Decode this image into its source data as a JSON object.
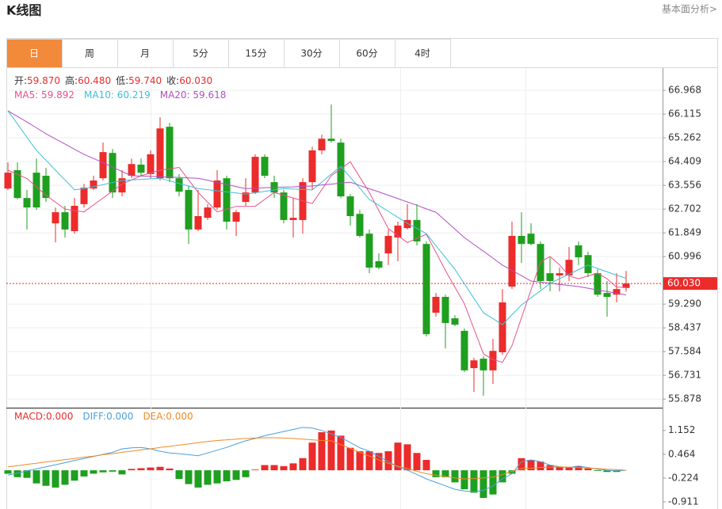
{
  "header": {
    "title": "K线图",
    "link": "基本面分析>"
  },
  "tabs": [
    "日",
    "周",
    "月",
    "5分",
    "15分",
    "30分",
    "60分",
    "4时"
  ],
  "active_tab": 0,
  "ohlc_info": [
    {
      "label": "开:",
      "value": "59.870"
    },
    {
      "label": "高:",
      "value": "60.480"
    },
    {
      "label": "低:",
      "value": "59.740"
    },
    {
      "label": "收:",
      "value": "60.030"
    }
  ],
  "chart_data": [
    {
      "type": "candlestick",
      "categories": [
        null,
        null,
        null,
        null,
        null,
        null,
        null,
        null,
        null,
        null,
        null,
        null,
        null,
        null,
        null,
        null,
        null,
        null,
        null,
        null,
        null,
        null,
        null,
        null,
        null,
        null,
        null,
        null,
        null,
        null,
        null,
        null,
        null,
        null,
        null,
        null,
        null,
        null,
        null,
        null,
        null,
        null,
        null,
        null,
        null,
        null,
        null,
        null,
        null,
        null,
        null,
        null,
        null,
        null,
        null,
        null,
        null,
        null,
        null,
        null,
        null,
        null,
        null,
        null,
        null,
        null
      ],
      "open": [
        63.44,
        64.1,
        63.1,
        64.01,
        63.9,
        62.19,
        62.59,
        61.91,
        62.88,
        63.44,
        63.81,
        64.72,
        63.3,
        63.9,
        64.3,
        63.96,
        63.81,
        65.66,
        63.81,
        63.39,
        61.97,
        62.39,
        62.76,
        63.81,
        62.25,
        62.96,
        63.3,
        64.58,
        63.67,
        63.3,
        62.31,
        62.31,
        63.67,
        64.81,
        65.23,
        65.09,
        63.16,
        62.53,
        61.82,
        60.83,
        61.11,
        61.68,
        62.02,
        62.31,
        61.45,
        58.98,
        59.55,
        58.78,
        58.33,
        56.99,
        57.33,
        56.91,
        57.56,
        59.92,
        61.74,
        61.82,
        61.45,
        60.4,
        60.32,
        60.32,
        61.4,
        61.05,
        60.4,
        59.69,
        59.63,
        59.87
      ],
      "high": [
        64.38,
        64.38,
        63.39,
        64.52,
        64.18,
        62.76,
        62.82,
        63.1,
        63.61,
        63.9,
        65.09,
        64.86,
        64.1,
        64.52,
        64.52,
        64.81,
        66.0,
        65.8,
        63.96,
        63.53,
        63.39,
        62.88,
        64.1,
        63.9,
        62.67,
        63.81,
        64.67,
        64.67,
        63.9,
        63.39,
        63.1,
        63.81,
        64.95,
        65.38,
        66.46,
        65.23,
        63.24,
        62.67,
        61.97,
        61.11,
        61.97,
        62.25,
        62.88,
        62.88,
        61.54,
        59.69,
        59.63,
        58.89,
        58.41,
        57.36,
        57.42,
        58.04,
        59.83,
        62.25,
        62.59,
        62.19,
        61.54,
        60.97,
        60.6,
        61.34,
        61.54,
        61.17,
        60.54,
        60.12,
        60.4,
        60.48
      ],
      "low": [
        63.39,
        63.05,
        61.97,
        62.67,
        62.96,
        61.51,
        61.68,
        61.82,
        62.76,
        63.39,
        63.73,
        63.1,
        63.16,
        63.81,
        63.9,
        63.81,
        63.73,
        63.67,
        63.16,
        61.45,
        61.91,
        62.31,
        62.67,
        61.97,
        61.74,
        62.82,
        63.24,
        63.81,
        63.1,
        62.19,
        61.68,
        61.82,
        63.39,
        64.67,
        65.09,
        63.1,
        62.11,
        61.68,
        60.4,
        60.54,
        60.69,
        60.83,
        61.97,
        61.4,
        58.13,
        58.84,
        57.7,
        58.5,
        56.85,
        56.14,
        56.0,
        56.42,
        57.47,
        59.83,
        60.77,
        61.4,
        59.83,
        59.75,
        59.75,
        60.12,
        60.69,
        60.26,
        59.55,
        58.84,
        59.35,
        59.74
      ],
      "close": [
        64.01,
        63.1,
        62.76,
        62.76,
        63.1,
        62.59,
        61.97,
        62.82,
        63.47,
        63.73,
        64.75,
        63.3,
        63.81,
        64.32,
        64.01,
        64.67,
        65.6,
        63.81,
        63.33,
        61.97,
        62.45,
        62.76,
        63.73,
        62.25,
        62.59,
        63.3,
        64.58,
        63.9,
        63.3,
        62.31,
        62.39,
        63.67,
        64.81,
        65.23,
        65.15,
        63.16,
        62.45,
        61.74,
        60.6,
        60.6,
        61.74,
        62.11,
        62.31,
        61.54,
        58.21,
        59.55,
        58.61,
        58.55,
        56.91,
        57.27,
        56.91,
        57.61,
        59.35,
        61.74,
        61.45,
        61.45,
        60.12,
        60.12,
        60.4,
        60.88,
        60.97,
        60.4,
        59.63,
        59.55,
        59.83,
        60.03
      ],
      "up_color": "#ec2b2b",
      "down_color": "#1f9f1f",
      "series": [
        {
          "name": "MA5: 59.892",
          "color": "#e9508a",
          "values": [
            64.1,
            63.95,
            63.8,
            63.5,
            63.2,
            62.95,
            62.7,
            62.65,
            62.6,
            62.85,
            63.1,
            63.35,
            63.6,
            63.75,
            63.9,
            64.0,
            64.1,
            64.15,
            64.2,
            63.75,
            63.3,
            62.95,
            62.6,
            62.7,
            62.8,
            62.8,
            62.8,
            63.05,
            63.3,
            63.2,
            63.1,
            63.0,
            62.9,
            63.4,
            63.9,
            64.15,
            64.4,
            63.85,
            63.3,
            62.65,
            62.0,
            61.75,
            61.5,
            61.65,
            61.8,
            61.15,
            60.5,
            59.9,
            59.3,
            58.4,
            57.5,
            57.3,
            57.2,
            57.8,
            58.8,
            59.8,
            60.8,
            61.0,
            60.7,
            60.3,
            60.2,
            60.3,
            60.4,
            60.2,
            59.9,
            59.892
          ]
        },
        {
          "name": "MA10: 60.219",
          "color": "#3dbfd9",
          "values": [
            66.23,
            65.76,
            65.28,
            64.81,
            64.46,
            64.1,
            63.75,
            63.39,
            63.44,
            63.51,
            63.58,
            63.66,
            63.73,
            63.75,
            63.77,
            63.79,
            63.81,
            63.72,
            63.62,
            63.53,
            63.44,
            63.4,
            63.36,
            63.32,
            63.28,
            63.24,
            63.29,
            63.34,
            63.39,
            63.44,
            63.42,
            63.41,
            63.39,
            63.67,
            63.96,
            64.24,
            63.84,
            63.45,
            63.05,
            62.84,
            62.62,
            62.41,
            62.19,
            62.01,
            61.82,
            61.39,
            60.97,
            60.54,
            60.02,
            59.5,
            58.98,
            58.77,
            58.55,
            58.91,
            59.26,
            59.52,
            59.77,
            60.03,
            60.2,
            60.36,
            60.53,
            60.69,
            60.57,
            60.45,
            60.33,
            60.219
          ]
        },
        {
          "name": "MA20: 59.618",
          "color": "#b04fc4",
          "values": [
            66.23,
            66.03,
            65.83,
            65.62,
            65.41,
            65.22,
            65.04,
            64.85,
            64.67,
            64.52,
            64.37,
            64.21,
            64.05,
            63.9,
            63.89,
            63.88,
            63.86,
            63.85,
            63.84,
            63.82,
            63.81,
            63.74,
            63.66,
            63.59,
            63.51,
            63.44,
            63.45,
            63.47,
            63.48,
            63.49,
            63.5,
            63.52,
            63.53,
            63.57,
            63.6,
            63.64,
            63.67,
            63.55,
            63.43,
            63.32,
            63.2,
            63.08,
            62.96,
            62.84,
            62.71,
            62.59,
            62.29,
            61.98,
            61.68,
            61.43,
            61.19,
            60.94,
            60.69,
            60.5,
            60.31,
            60.12,
            60.08,
            60.04,
            60.0,
            59.96,
            59.92,
            59.86,
            59.8,
            59.74,
            59.68,
            59.618
          ]
        }
      ],
      "ylim": [
        67.71,
        55.57
      ],
      "yticks": [
        66.968,
        66.115,
        65.262,
        64.409,
        63.556,
        62.702,
        61.849,
        60.996,
        {
          "value": 59.29,
          "label": "59.290"
        },
        58.437,
        57.584,
        56.731,
        55.878
      ],
      "price_line": {
        "value": 60.03,
        "label": "60.030"
      },
      "grid": true
    },
    {
      "type": "macd",
      "categories": [
        null,
        null,
        null,
        null,
        null,
        null,
        null,
        null,
        null,
        null,
        null,
        null,
        null,
        null,
        null,
        null,
        null,
        null,
        null,
        null,
        null,
        null,
        null,
        null,
        null,
        null,
        null,
        null,
        null,
        null,
        null,
        null,
        null,
        null,
        null,
        null,
        null,
        null,
        null,
        null,
        null,
        null,
        null,
        null,
        null,
        null,
        null,
        null,
        null,
        null,
        null,
        null,
        null,
        null,
        null,
        null,
        null,
        null,
        null,
        null,
        null,
        null,
        null,
        null,
        null,
        null
      ],
      "name": "MACD:0.000",
      "color": "#ec2b2b",
      "down_color": "#1f9f1f",
      "values": [
        -0.1,
        -0.2,
        -0.22,
        -0.38,
        -0.45,
        -0.5,
        -0.42,
        -0.3,
        -0.18,
        -0.1,
        -0.06,
        -0.04,
        -0.12,
        0.04,
        0.06,
        0.08,
        0.1,
        0.05,
        -0.25,
        -0.4,
        -0.5,
        -0.42,
        -0.38,
        -0.32,
        -0.28,
        -0.2,
        0.02,
        0.15,
        0.15,
        0.12,
        0.2,
        0.35,
        0.8,
        1.1,
        1.15,
        1.0,
        0.65,
        0.55,
        0.55,
        0.5,
        0.55,
        0.8,
        0.75,
        0.5,
        0.3,
        -0.2,
        -0.2,
        -0.35,
        -0.55,
        -0.65,
        -0.8,
        -0.7,
        -0.35,
        -0.1,
        0.35,
        0.3,
        0.25,
        0.15,
        0.1,
        0.08,
        0.12,
        0.05,
        -0.02,
        -0.05,
        -0.05,
        0
      ],
      "series": [
        {
          "name": "DIFF:0.000",
          "color": "#4a9fe0",
          "values": [
            -0.14,
            -0.08,
            -0.02,
            0.04,
            0.1,
            0.16,
            0.22,
            0.28,
            0.34,
            0.4,
            0.46,
            0.52,
            0.62,
            0.65,
            0.66,
            0.62,
            0.55,
            0.5,
            0.48,
            0.45,
            0.42,
            0.5,
            0.58,
            0.66,
            0.76,
            0.85,
            0.92,
            1.0,
            1.06,
            1.12,
            1.18,
            1.24,
            1.22,
            1.15,
            1.05,
            0.95,
            0.8,
            0.65,
            0.55,
            0.4,
            0.25,
            0.1,
            0,
            -0.12,
            -0.25,
            -0.35,
            -0.45,
            -0.55,
            -0.6,
            -0.62,
            -0.58,
            -0.45,
            -0.25,
            -0.1,
            0.25,
            0.3,
            0.25,
            0.15,
            0.1,
            0.08,
            0.12,
            0.08,
            0.03,
            0,
            -0.02,
            0
          ]
        },
        {
          "name": "DEA:0.000",
          "color": "#f08a24",
          "values": [
            0.1,
            0.13,
            0.17,
            0.2,
            0.24,
            0.27,
            0.31,
            0.34,
            0.38,
            0.41,
            0.45,
            0.48,
            0.52,
            0.55,
            0.59,
            0.62,
            0.66,
            0.69,
            0.73,
            0.76,
            0.8,
            0.83,
            0.86,
            0.88,
            0.9,
            0.92,
            0.93,
            0.94,
            0.94,
            0.93,
            0.92,
            0.9,
            0.88,
            0.86,
            0.85,
            0.74,
            0.63,
            0.52,
            0.41,
            0.3,
            0.2,
            0.12,
            0.05,
            -0.03,
            -0.1,
            -0.14,
            -0.18,
            -0.22,
            -0.25,
            -0.24,
            -0.22,
            -0.2,
            -0.12,
            -0.03,
            0.05,
            0.06,
            0.08,
            0.09,
            0.1,
            0.09,
            0.08,
            0.06,
            0.05,
            0.03,
            0.02,
            0
          ]
        }
      ],
      "ylim": [
        -1.12,
        1.81
      ],
      "yticks": [
        1.152,
        0.464,
        -0.224,
        -0.911
      ]
    }
  ]
}
